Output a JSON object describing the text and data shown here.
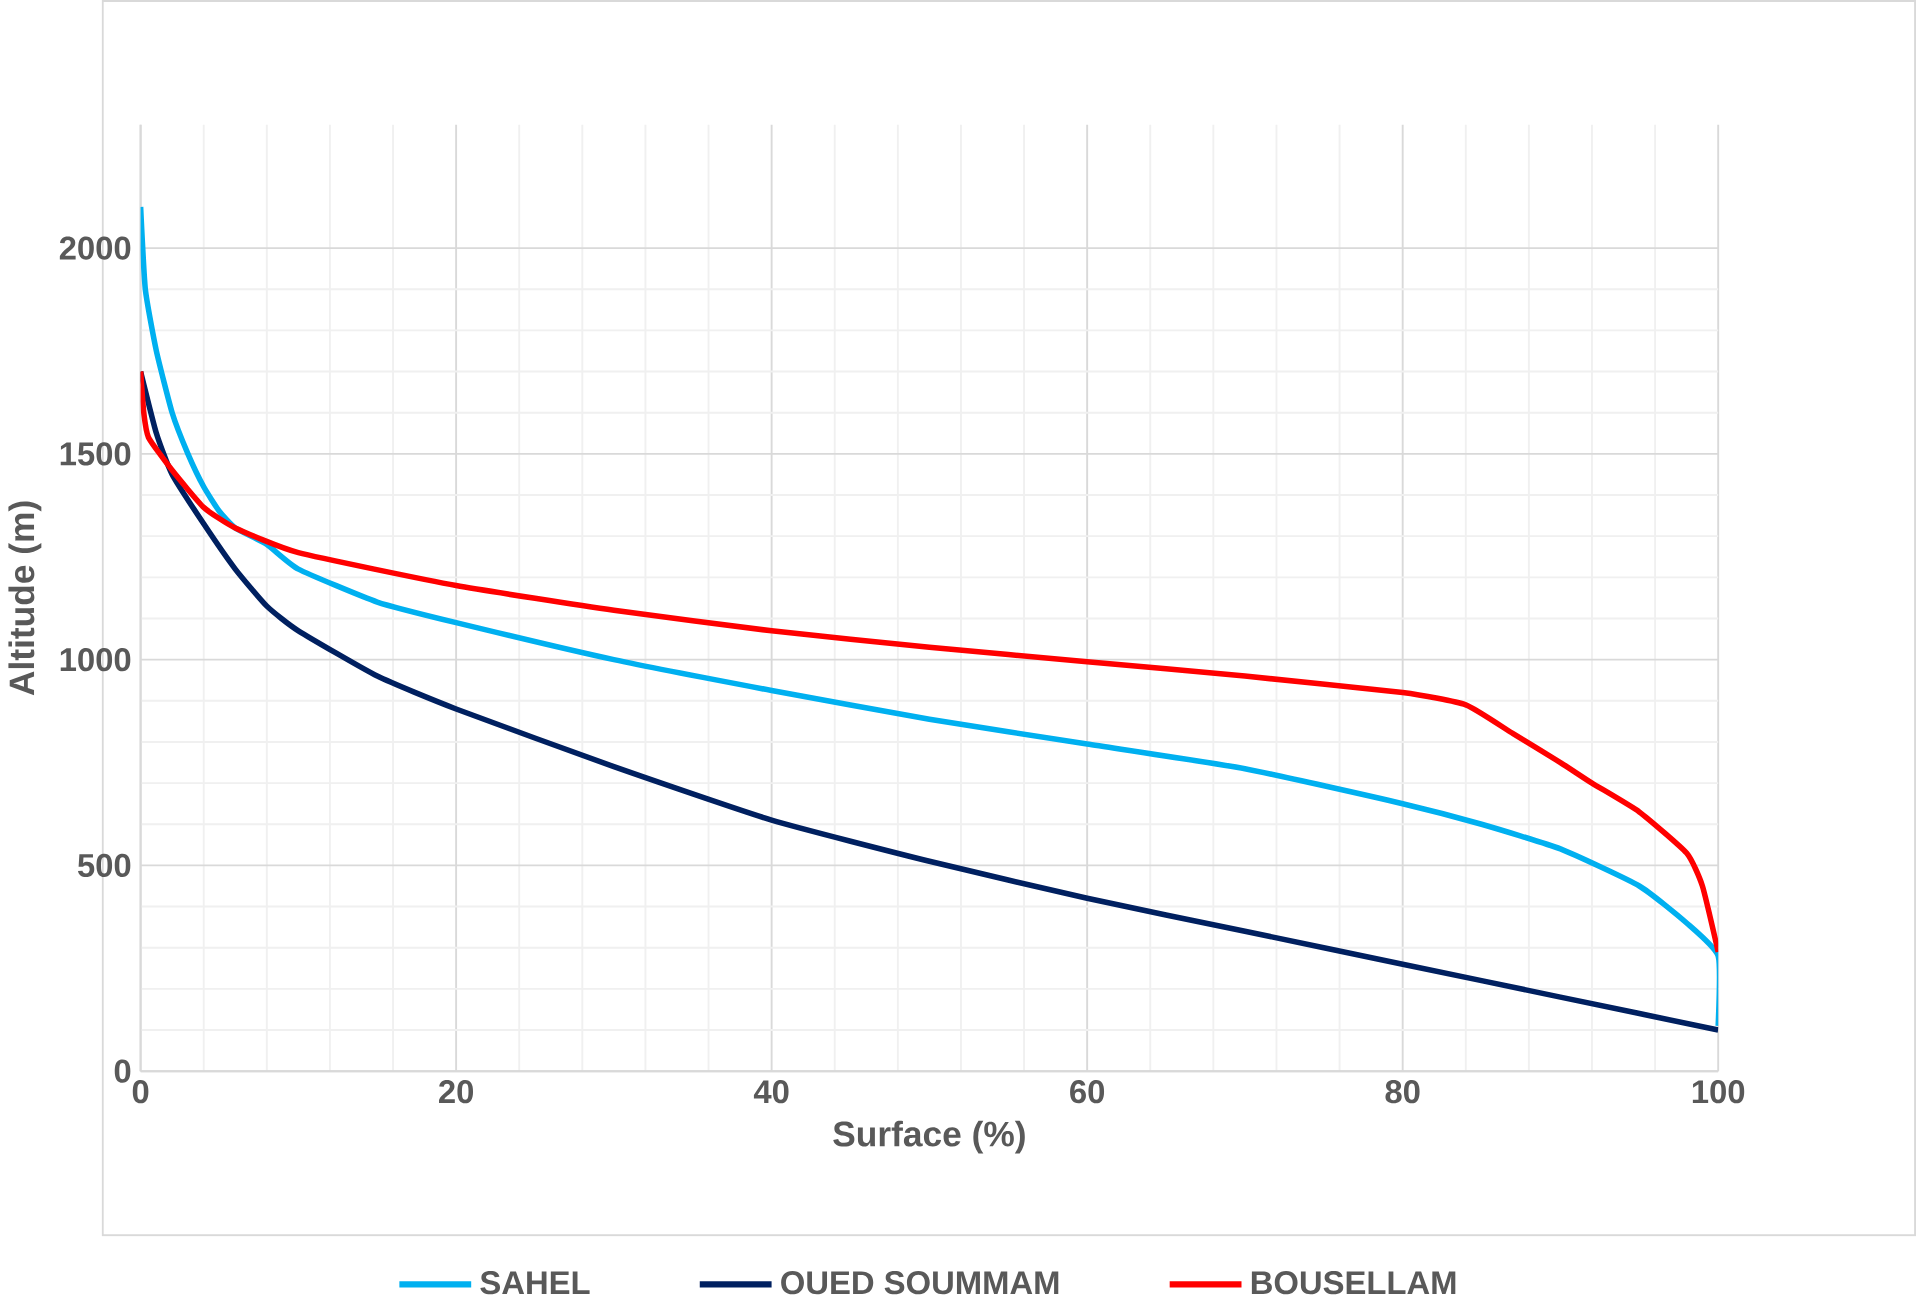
{
  "chart_data": {
    "type": "line",
    "xlabel": "Surface (%)",
    "ylabel": "Altitude (m)",
    "xlim": [
      0,
      100
    ],
    "ylim": [
      0,
      2300
    ],
    "xticks": [
      0,
      20,
      40,
      60,
      80,
      100
    ],
    "yticks": [
      0,
      500,
      1000,
      1500,
      2000
    ],
    "grid": true,
    "legend": "bottom",
    "marker": "none",
    "line_style": "solid",
    "series": [
      {
        "name": "SAHEL",
        "color": "#00b0f0",
        "x": [
          0,
          0.3,
          1,
          2,
          3,
          4,
          5,
          6,
          8,
          10,
          15,
          20,
          30,
          40,
          50,
          60,
          70,
          80,
          85,
          90,
          95,
          98,
          100,
          100
        ],
        "values": [
          2100,
          1900,
          1750,
          1600,
          1500,
          1420,
          1360,
          1320,
          1280,
          1220,
          1140,
          1090,
          1000,
          925,
          855,
          795,
          735,
          650,
          600,
          540,
          450,
          360,
          280,
          110
        ]
      },
      {
        "name": "OUED SOUMMAM",
        "color": "#002060",
        "x": [
          0,
          1,
          2,
          4,
          6,
          8,
          10,
          15,
          20,
          30,
          40,
          50,
          60,
          70,
          80,
          90,
          100
        ],
        "values": [
          1700,
          1550,
          1450,
          1330,
          1220,
          1130,
          1070,
          960,
          880,
          740,
          610,
          510,
          420,
          340,
          260,
          180,
          100
        ]
      },
      {
        "name": "BOUSELLAM",
        "color": "#ff0000",
        "x": [
          0,
          0.2,
          0.5,
          2,
          4,
          6,
          10,
          20,
          30,
          40,
          50,
          60,
          70,
          80,
          84,
          87,
          90,
          92,
          95,
          98,
          99,
          100
        ],
        "values": [
          1700,
          1600,
          1540,
          1460,
          1370,
          1320,
          1260,
          1180,
          1120,
          1070,
          1030,
          995,
          960,
          920,
          890,
          820,
          750,
          700,
          630,
          530,
          450,
          290
        ]
      }
    ]
  }
}
